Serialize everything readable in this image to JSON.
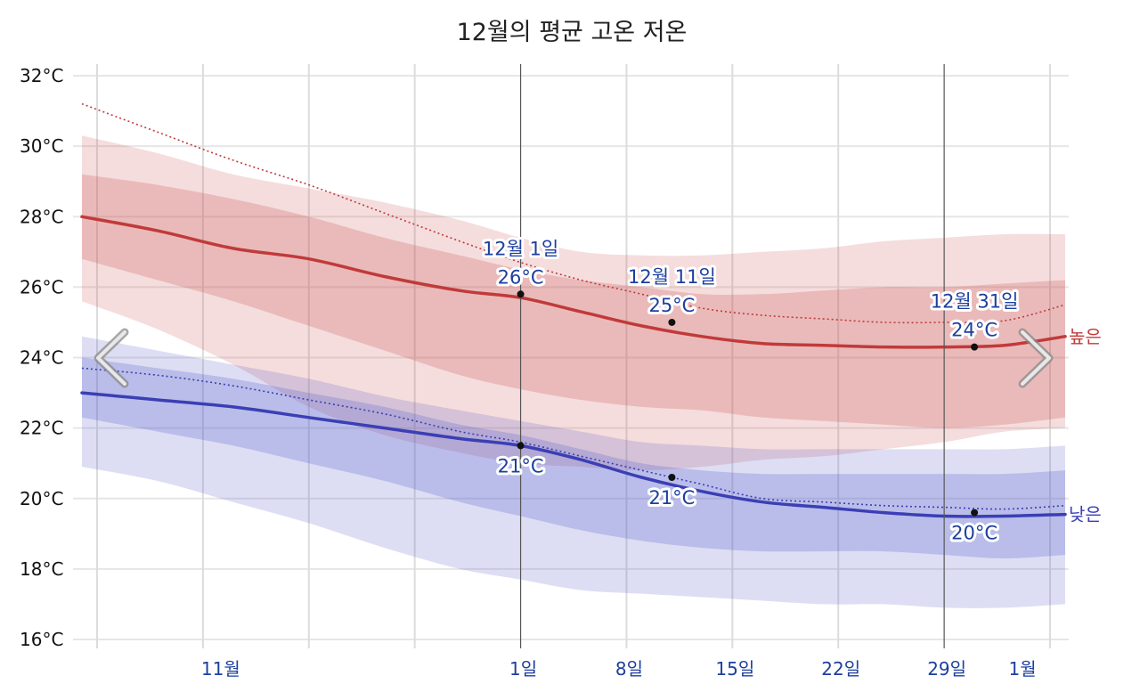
{
  "chart_data": {
    "type": "line",
    "title": "12월의 평균 고온 저온",
    "ylim": [
      16,
      32
    ],
    "y_ticks": [
      "16°C",
      "18°C",
      "20°C",
      "22°C",
      "24°C",
      "26°C",
      "28°C",
      "30°C",
      "32°C"
    ],
    "y_tick_values": [
      16,
      18,
      20,
      22,
      24,
      26,
      28,
      30,
      32
    ],
    "x_range_days": [
      -29,
      36
    ],
    "x_ticks": [
      {
        "label": "11월",
        "day": -20
      },
      {
        "label": "1일",
        "day": 0
      },
      {
        "label": "8일",
        "day": 7
      },
      {
        "label": "15일",
        "day": 14
      },
      {
        "label": "22일",
        "day": 21
      },
      {
        "label": "29일",
        "day": 28
      },
      {
        "label": "1월",
        "day": 33
      }
    ],
    "grid": true,
    "x": [
      -29,
      -24,
      -19,
      -14,
      -9,
      -4,
      0,
      4,
      8,
      12,
      16,
      20,
      24,
      28,
      32,
      36
    ],
    "series": [
      {
        "name": "높은",
        "color": "#c13a3a",
        "mean": [
          28.0,
          27.6,
          27.1,
          26.8,
          26.3,
          25.9,
          25.7,
          25.3,
          24.9,
          24.6,
          24.4,
          24.35,
          24.3,
          24.3,
          24.35,
          24.6
        ],
        "band_inner": [
          [
            26.8,
            29.2
          ],
          [
            26.2,
            28.9
          ],
          [
            25.6,
            28.5
          ],
          [
            24.9,
            28.0
          ],
          [
            24.2,
            27.4
          ],
          [
            23.5,
            26.9
          ],
          [
            23.1,
            26.5
          ],
          [
            22.8,
            26.2
          ],
          [
            22.6,
            26.0
          ],
          [
            22.5,
            25.8
          ],
          [
            22.3,
            25.8
          ],
          [
            22.2,
            25.9
          ],
          [
            22.1,
            26.0
          ],
          [
            22.0,
            26.0
          ],
          [
            22.1,
            26.1
          ],
          [
            22.3,
            26.2
          ]
        ],
        "band_outer": [
          [
            25.6,
            30.3
          ],
          [
            24.8,
            29.8
          ],
          [
            23.8,
            29.2
          ],
          [
            22.6,
            28.8
          ],
          [
            21.8,
            28.4
          ],
          [
            21.3,
            27.9
          ],
          [
            21.0,
            27.4
          ],
          [
            20.9,
            27.0
          ],
          [
            20.8,
            26.9
          ],
          [
            20.9,
            26.9
          ],
          [
            21.1,
            27.0
          ],
          [
            21.2,
            27.1
          ],
          [
            21.4,
            27.3
          ],
          [
            21.6,
            27.4
          ],
          [
            21.9,
            27.5
          ],
          [
            22.0,
            27.5
          ]
        ],
        "record": [
          31.2,
          30.4,
          29.6,
          28.9,
          28.1,
          27.3,
          26.7,
          26.2,
          25.8,
          25.4,
          25.2,
          25.1,
          25.0,
          25.0,
          25.05,
          25.5
        ]
      },
      {
        "name": "낮은",
        "color": "#3a3fb5",
        "mean": [
          23.0,
          22.8,
          22.6,
          22.3,
          22.0,
          21.7,
          21.5,
          21.1,
          20.6,
          20.2,
          19.9,
          19.75,
          19.6,
          19.5,
          19.5,
          19.55
        ],
        "band_inner": [
          [
            22.3,
            24.0
          ],
          [
            21.9,
            23.7
          ],
          [
            21.5,
            23.4
          ],
          [
            21.0,
            23.0
          ],
          [
            20.5,
            22.6
          ],
          [
            19.9,
            22.1
          ],
          [
            19.5,
            21.8
          ],
          [
            19.1,
            21.4
          ],
          [
            18.8,
            21.0
          ],
          [
            18.6,
            20.8
          ],
          [
            18.5,
            20.7
          ],
          [
            18.5,
            20.7
          ],
          [
            18.5,
            20.7
          ],
          [
            18.4,
            20.7
          ],
          [
            18.3,
            20.7
          ],
          [
            18.4,
            20.8
          ]
        ],
        "band_outer": [
          [
            20.9,
            24.6
          ],
          [
            20.5,
            24.2
          ],
          [
            19.9,
            23.8
          ],
          [
            19.3,
            23.4
          ],
          [
            18.6,
            22.9
          ],
          [
            18.0,
            22.5
          ],
          [
            17.7,
            22.2
          ],
          [
            17.4,
            21.9
          ],
          [
            17.3,
            21.6
          ],
          [
            17.2,
            21.5
          ],
          [
            17.1,
            21.4
          ],
          [
            17.0,
            21.4
          ],
          [
            17.0,
            21.4
          ],
          [
            16.9,
            21.4
          ],
          [
            16.9,
            21.4
          ],
          [
            17.0,
            21.5
          ]
        ],
        "record": [
          23.7,
          23.5,
          23.2,
          22.8,
          22.4,
          21.9,
          21.6,
          21.2,
          20.8,
          20.4,
          20.0,
          19.9,
          19.8,
          19.75,
          19.7,
          19.8
        ]
      }
    ],
    "annotations": [
      {
        "series": "high",
        "day": 0,
        "value": 25.8,
        "date": "12월 1일",
        "temp": "26°C",
        "place": "above"
      },
      {
        "series": "high",
        "day": 10,
        "value": 25.0,
        "date": "12월 11일",
        "temp": "25°C",
        "place": "above"
      },
      {
        "series": "high",
        "day": 30,
        "value": 24.3,
        "date": "12월 31일",
        "temp": "24°C",
        "place": "above"
      },
      {
        "series": "low",
        "day": 0,
        "value": 21.5,
        "temp": "21°C",
        "place": "below"
      },
      {
        "series": "low",
        "day": 10,
        "value": 20.6,
        "temp": "21°C",
        "place": "below"
      },
      {
        "series": "low",
        "day": 30,
        "value": 19.6,
        "temp": "20°C",
        "place": "below"
      }
    ],
    "highlight_lines_days": [
      0,
      28
    ]
  },
  "nav": {
    "prev_icon": "chevron-left-icon",
    "next_icon": "chevron-right-icon"
  }
}
